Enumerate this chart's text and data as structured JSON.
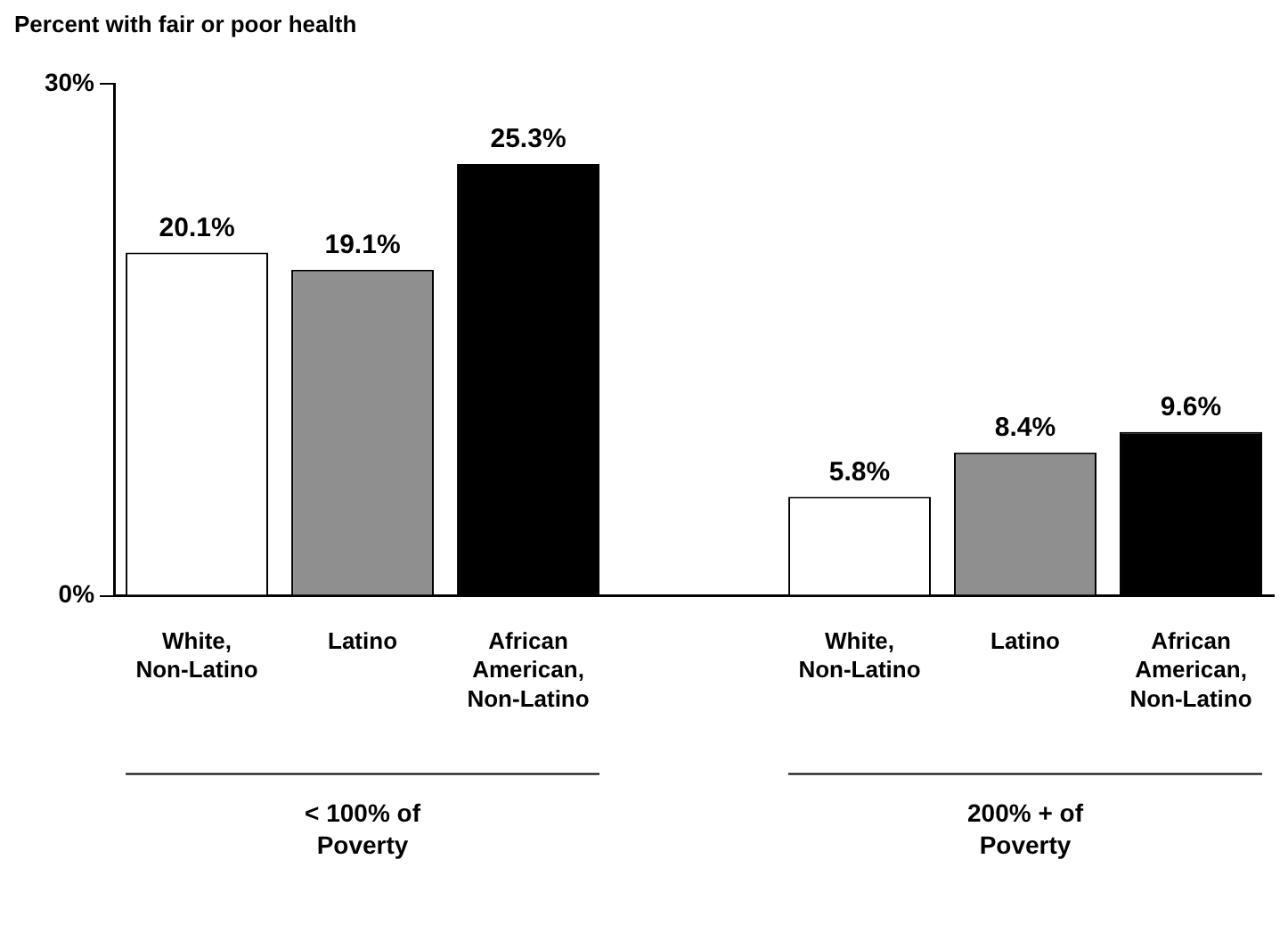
{
  "chart_data": {
    "type": "bar",
    "ylabel": "Percent with fair or poor health",
    "categories": [
      "White, Non-Latino",
      "Latino",
      "African American, Non-Latino",
      null,
      "White, Non-Latino",
      "Latino",
      "African American, Non-Latino"
    ],
    "values": [
      20.1,
      19.1,
      25.3,
      null,
      5.8,
      8.4,
      9.6
    ],
    "value_labels": [
      "20.1%",
      "19.1%",
      "25.3%",
      null,
      "5.8%",
      "8.4%",
      "9.6%"
    ],
    "colors": [
      "#ffffff",
      "#8f8f8f",
      "#000000",
      null,
      "#ffffff",
      "#8f8f8f",
      "#000000"
    ],
    "annotations": [
      "< 100% of Poverty",
      "200% + of Poverty"
    ],
    "ylim": [
      0,
      30
    ],
    "yticks": [
      {
        "value": 0,
        "label": "0%"
      },
      {
        "value": 30,
        "label": "30%"
      }
    ],
    "grid": false,
    "legend": false
  }
}
